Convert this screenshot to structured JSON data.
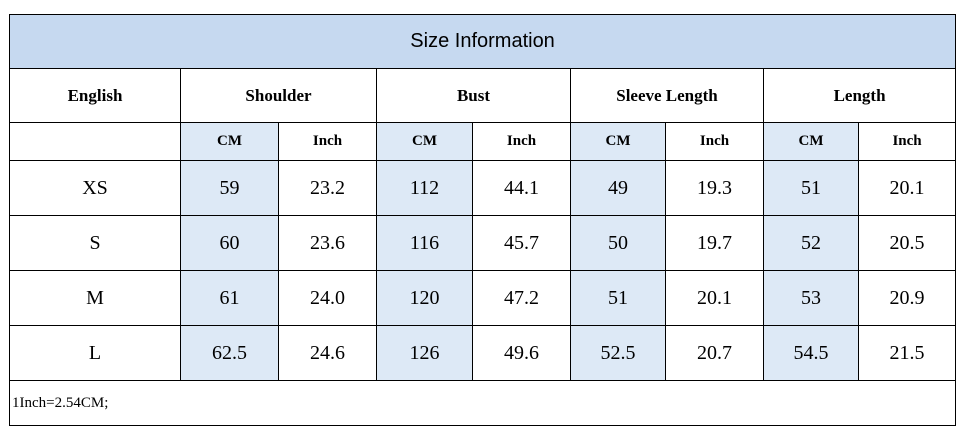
{
  "title": "Size Information",
  "header": [
    "English",
    "Shoulder",
    "Bust",
    "Sleeve Length",
    "Length"
  ],
  "subheader": [
    "CM",
    "Inch",
    "CM",
    "Inch",
    "CM",
    "Inch",
    "CM",
    "Inch"
  ],
  "rows": [
    [
      "XS",
      "59",
      "23.2",
      "112",
      "44.1",
      "49",
      "19.3",
      "51",
      "20.1"
    ],
    [
      "S",
      "60",
      "23.6",
      "116",
      "45.7",
      "50",
      "19.7",
      "52",
      "20.5"
    ],
    [
      "M",
      "61",
      "24.0",
      "120",
      "47.2",
      "51",
      "20.1",
      "53",
      "20.9"
    ],
    [
      "L",
      "62.5",
      "24.6",
      "126",
      "49.6",
      "52.5",
      "20.7",
      "54.5",
      "21.5"
    ]
  ],
  "note": "1Inch=2.54CM;"
}
